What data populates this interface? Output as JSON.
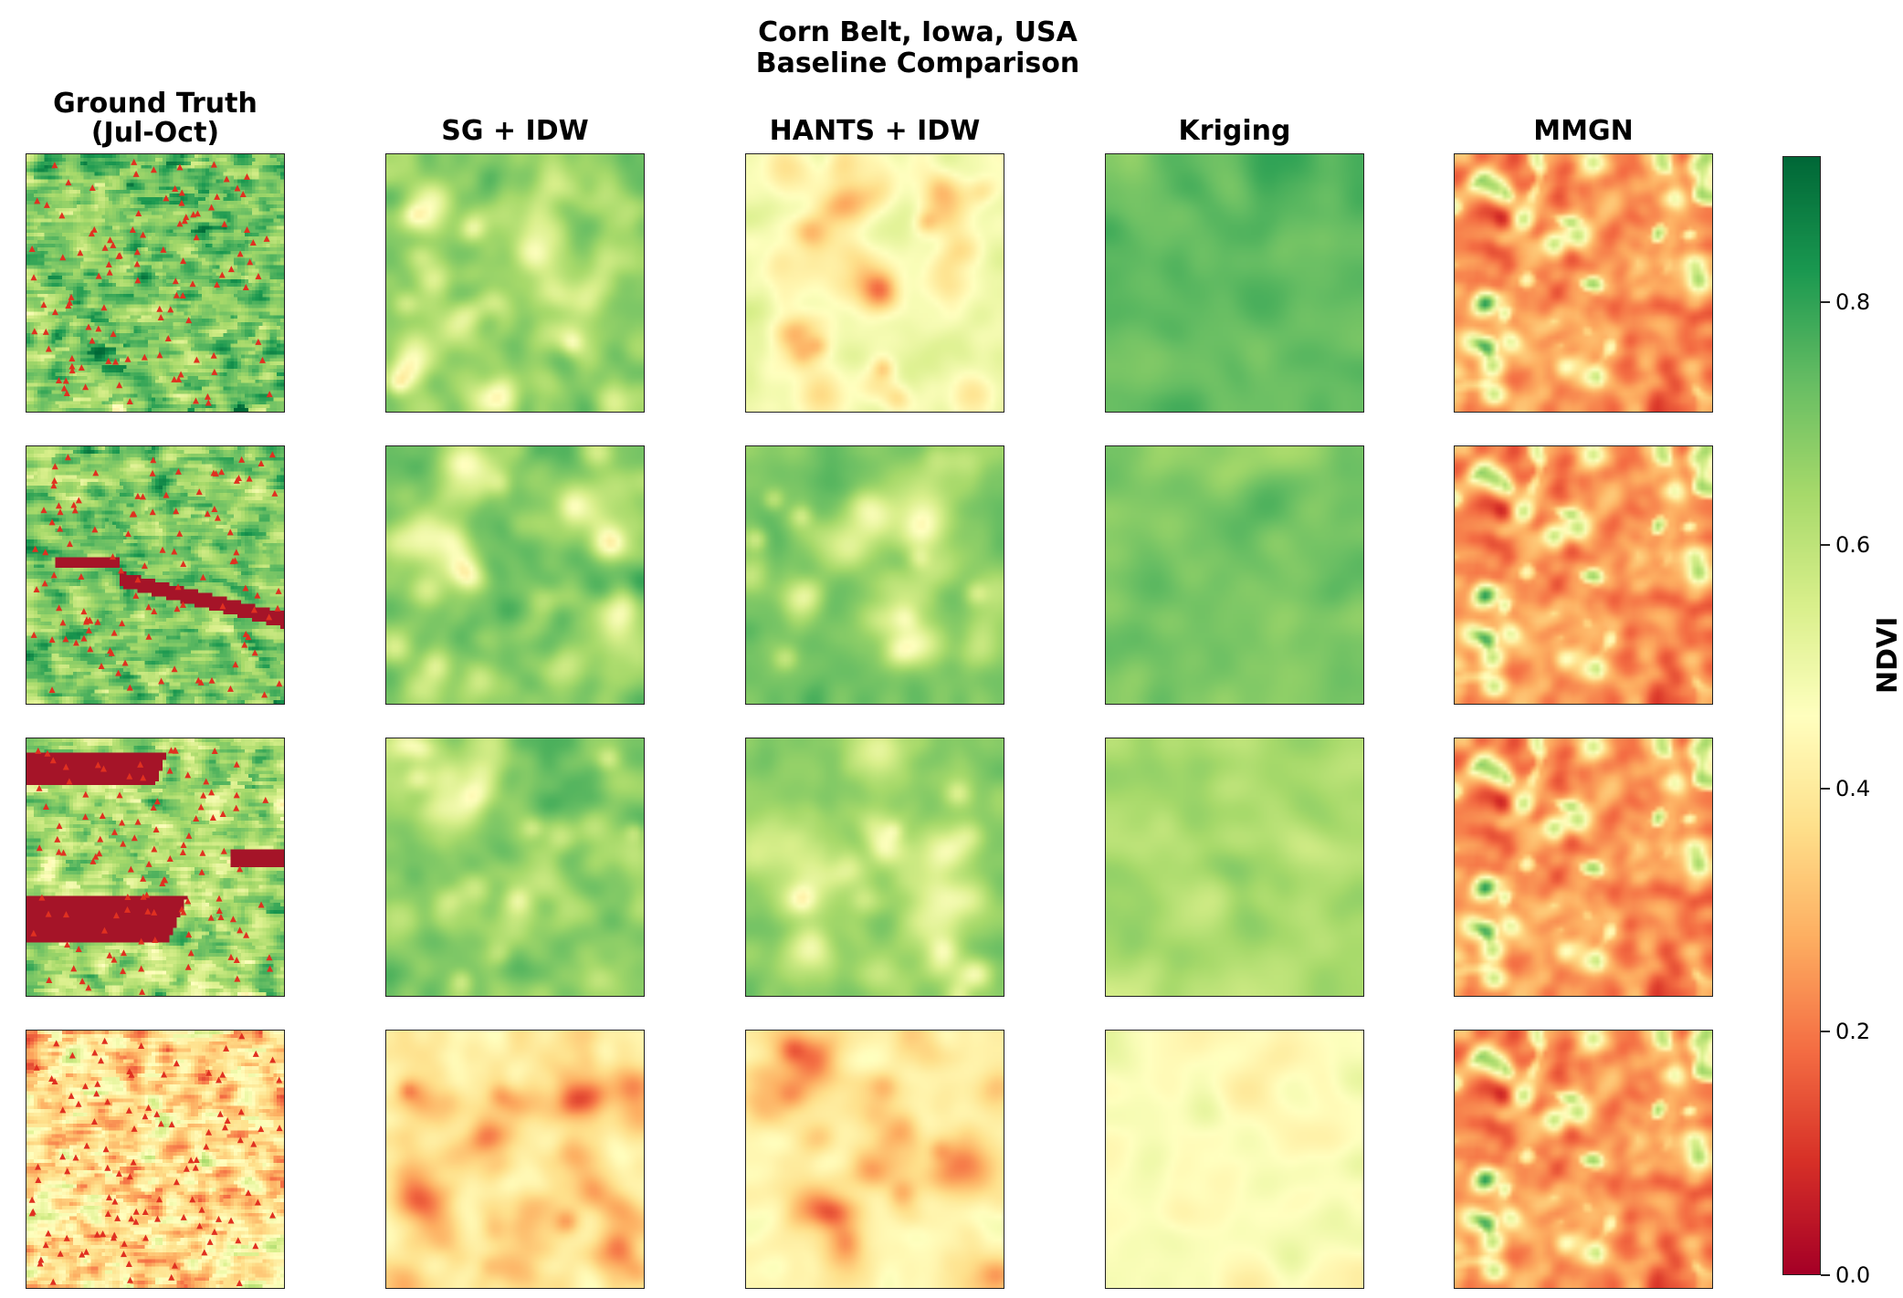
{
  "figure": {
    "title_line1": "Corn Belt, Iowa, USA",
    "title_line2": "Baseline Comparison"
  },
  "chart_data": {
    "type": "heatmap",
    "title": "Corn Belt, Iowa, USA Baseline Comparison",
    "columns": [
      {
        "key": "gt",
        "label_line1": "Ground Truth",
        "label_line2": "(Jul-Oct)"
      },
      {
        "key": "sg",
        "label_line1": "SG + IDW",
        "label_line2": ""
      },
      {
        "key": "hants",
        "label_line1": "HANTS + IDW",
        "label_line2": ""
      },
      {
        "key": "kriging",
        "label_line1": "Kriging",
        "label_line2": ""
      },
      {
        "key": "mmgn",
        "label_line1": "MMGN",
        "label_line2": ""
      }
    ],
    "rows": 4,
    "row_mean_ndvi": {
      "gt": [
        0.75,
        0.76,
        0.68,
        0.47
      ],
      "sg": [
        0.74,
        0.78,
        0.76,
        0.46
      ],
      "hants": [
        0.55,
        0.78,
        0.74,
        0.47
      ],
      "kriging": [
        0.8,
        0.76,
        0.68,
        0.5
      ],
      "mmgn": [
        0.28,
        0.28,
        0.28,
        0.28
      ]
    },
    "colorbar": {
      "label": "NDVI",
      "colormap": "RdYlGn",
      "vmin": 0.0,
      "vmax": 0.92,
      "ticks": [
        0.0,
        0.2,
        0.4,
        0.6,
        0.8
      ],
      "tick_labels": [
        "0.0",
        "0.2",
        "0.4",
        "0.6",
        "0.8"
      ]
    },
    "sample_points": {
      "marker": "triangle",
      "color": "#e03020",
      "shown_in": "gt"
    }
  }
}
